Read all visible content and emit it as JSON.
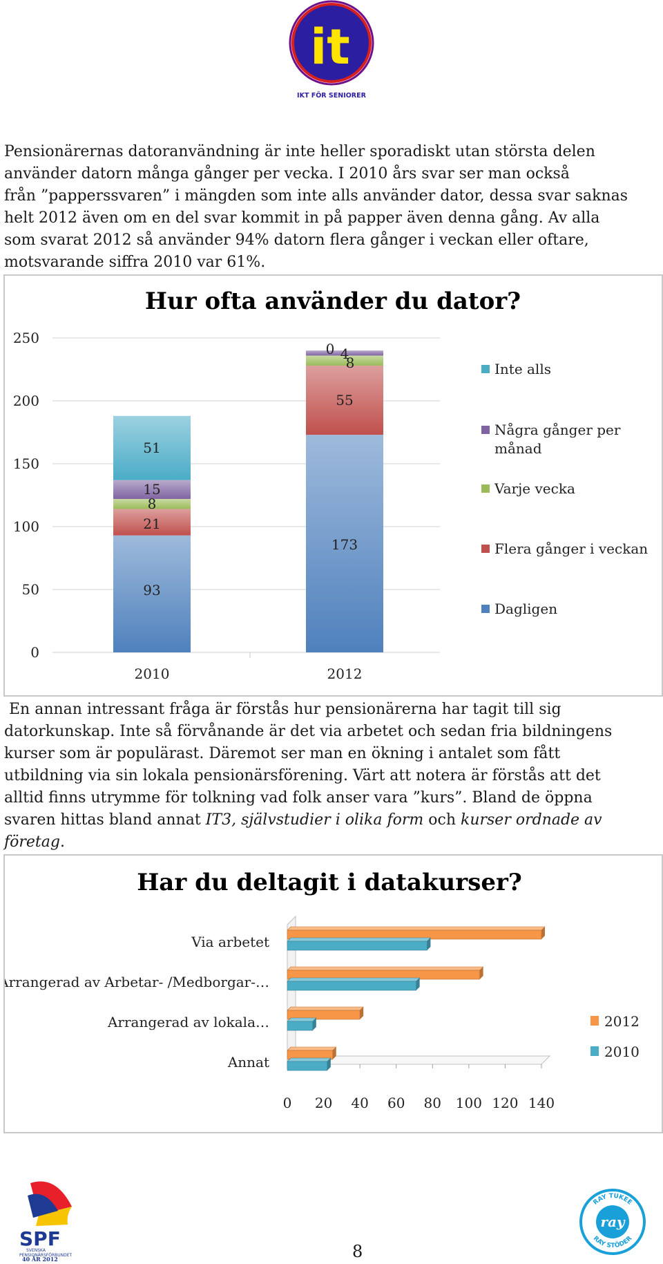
{
  "header": {
    "logo_text": "it",
    "logo_caption": "IKT FÖR SENIORER"
  },
  "paragraph1": [
    "Pensionärernas datoranvändning är inte heller sporadiskt utan största delen",
    "använder datorn många gånger per vecka. I 2010 års svar ser man också",
    "från ”papperssvaren” i mängden som inte alls använder dator, dessa svar saknas",
    "helt 2012 även om en del svar kommit in på papper även denna gång. Av alla",
    "som svarat 2012 så använder 94% datorn flera gånger i veckan eller oftare,",
    "motsvarande siffra 2010 var 61%."
  ],
  "paragraph2": {
    "lines": [
      " En annan intressant fråga är förstås hur pensionärerna har tagit till sig",
      "datorkunskap. Inte så förvånande är det via arbetet och sedan fria bildningens",
      "kurser som  är populärast. Däremot ser man en ökning i antalet som fått",
      "utbildning via sin lokala pensionärsförening. Värt att notera är förstås att det",
      "alltid finns utrymme för tolkning vad folk anser vara ”kurs”. Bland de öppna"
    ],
    "line6_pre": "svaren hittas bland annat ",
    "line6_em1": "IT3, självstudier i olika form",
    "line6_mid": " och ",
    "line6_em2": "kurser ordnade av",
    "line7_em": "företag",
    "line7_post": "."
  },
  "chart_data": [
    {
      "type": "bar",
      "stacked": true,
      "title": "Hur ofta använder du dator?",
      "categories": [
        "2010",
        "2012"
      ],
      "ylim": [
        0,
        250
      ],
      "yticks": [
        "0",
        "50",
        "100",
        "150",
        "200",
        "250"
      ],
      "grid": true,
      "legend_position": "right",
      "series": [
        {
          "name": "Dagligen",
          "values": [
            93,
            173
          ],
          "color": "#4f81bd"
        },
        {
          "name": "Flera gånger i veckan",
          "values": [
            21,
            55
          ],
          "color": "#c0504d"
        },
        {
          "name": "Varje vecka",
          "values": [
            8,
            8
          ],
          "color": "#9bbb59"
        },
        {
          "name": "Några gånger per månad",
          "values": [
            15,
            4
          ],
          "color": "#8064a2"
        },
        {
          "name": "Inte alls",
          "values": [
            51,
            0
          ],
          "color": "#4bacc6"
        }
      ],
      "legend_order": [
        "Inte alls",
        "Några gånger per månad",
        "Varje vecka",
        "Flera gånger i veckan",
        "Dagligen"
      ],
      "legend_lines": {
        "Inte alls": [
          "Inte alls"
        ],
        "Några gånger per månad": [
          "Några gånger per",
          "månad"
        ],
        "Varje vecka": [
          "Varje vecka"
        ],
        "Flera gånger i veckan": [
          "Flera gånger i veckan"
        ],
        "Dagligen": [
          "Dagligen"
        ]
      }
    },
    {
      "type": "bar",
      "orientation": "horizontal",
      "title": "Har du deltagit i datakurser?",
      "categories": [
        "Via arbetet",
        "Arrangerad av Arbetar- /Medborgar-…",
        "Arrangerad av lokala…",
        "Annat"
      ],
      "xlim": [
        0,
        140
      ],
      "xticks": [
        "0",
        "20",
        "40",
        "60",
        "80",
        "100",
        "120",
        "140"
      ],
      "grid": false,
      "legend_position": "right",
      "series": [
        {
          "name": "2012",
          "values": [
            140,
            106,
            40,
            25
          ],
          "color": "#f79646"
        },
        {
          "name": "2010",
          "values": [
            77,
            71,
            14,
            22
          ],
          "color": "#4bacc6"
        }
      ]
    }
  ],
  "footer": {
    "spf_logo_text": "SPF",
    "spf_sub1": "SVENSKA",
    "spf_sub2": "PENSIONÄRSFÖRBUNDET",
    "spf_sub3": "40 ÅR 2012",
    "ray_top": "RAY TUKEE",
    "ray_center": "ray",
    "ray_bottom": "RAY STÖDER",
    "page_number": "8"
  }
}
